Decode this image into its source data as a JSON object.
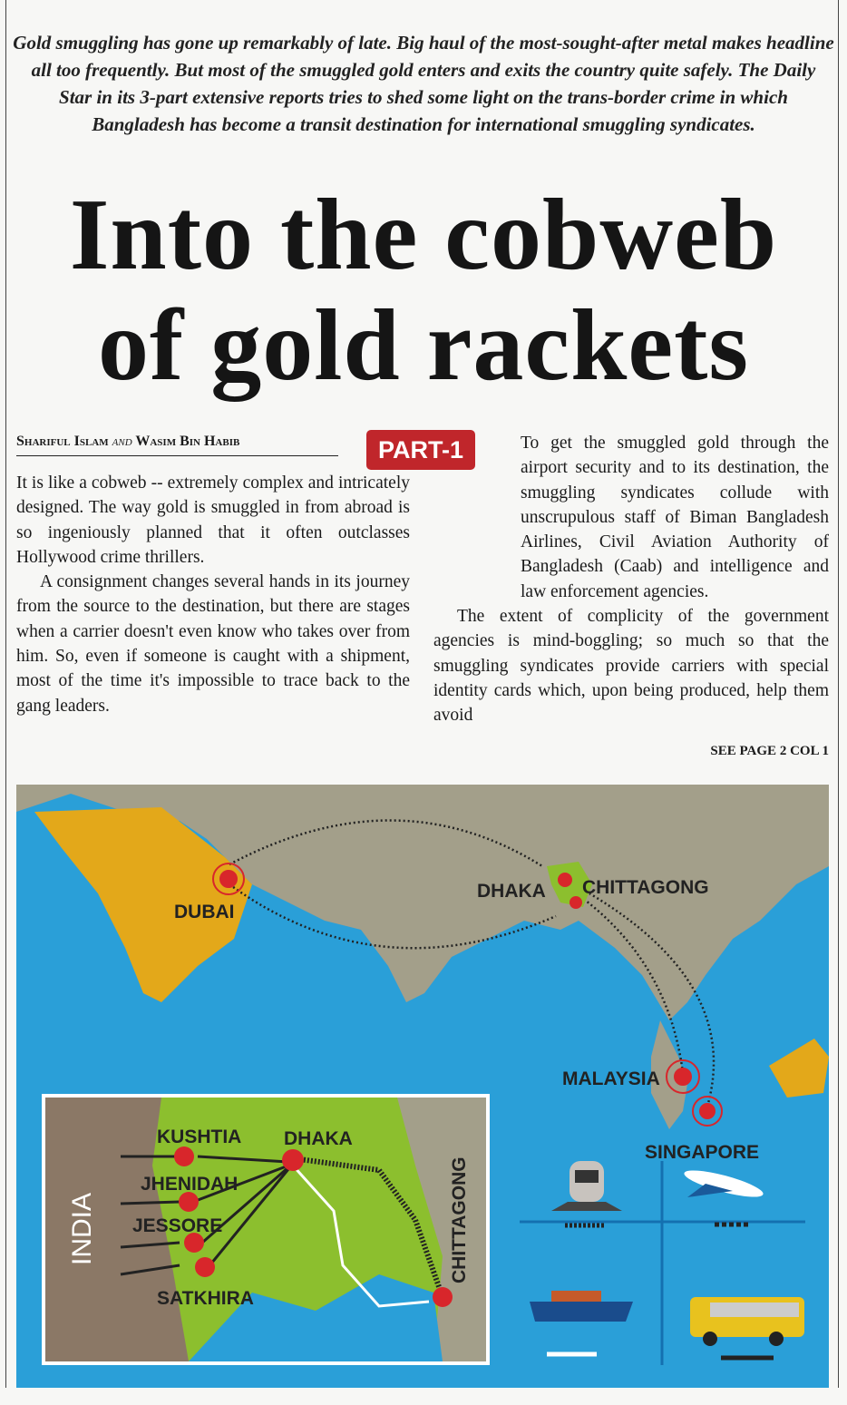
{
  "intro": "Gold smuggling has gone up remarkably of late. Big haul of the most-sought-after metal makes headline all too frequently. But most of the smuggled gold enters and exits the country quite safely. The Daily Star in its 3-part extensive reports tries to shed some light on the trans-border crime in which Bangladesh has become a transit destination for international smuggling syndicates.",
  "headline": {
    "line1": "Into the cobweb",
    "line2": "of gold rackets"
  },
  "byline": {
    "author1": "Shariful Islam",
    "and": "and",
    "author2": "Wasim Bin Habib"
  },
  "part_badge": "PART-1",
  "body": {
    "left": [
      "It is like a cobweb -- extremely complex and intricately designed. The way gold is smuggled in from abroad is so ingeniously planned that it often outclasses Hollywood crime thrillers.",
      "A consignment changes several hands in its journey from the source to the destination, but there are stages when a carrier doesn't even know who takes over from him. So, even if someone is caught with a shipment, most of the time it's impossible to trace back to the gang leaders."
    ],
    "right": [
      "To get the smuggled gold through the airport security and to its destination, the smuggling syndicates collude with unscrupulous staff of Biman Bangladesh Airlines, Civil Aviation Authority of Bangladesh (Caab) and intelligence and law enforcement agencies.",
      "The extent of complicity of the government agencies is mind-boggling; so much so that the smuggling syndicates provide carriers with special identity cards which, upon being produced, help them avoid"
    ],
    "continued": "SEE PAGE 2 COL 1"
  },
  "map": {
    "places": {
      "dubai": "DUBAI",
      "dhaka": "DHAKA",
      "chittagong": "CHITTAGONG",
      "malaysia": "MALAYSIA",
      "singapore": "SINGAPORE"
    },
    "inset": {
      "india": "INDIA",
      "kushtia": "KUSHTIA",
      "dhaka": "DHAKA",
      "jhenidah": "JHENIDAH",
      "jessore": "JESSORE",
      "satkhira": "SATKHIRA",
      "chittagong": "CHITTAGONG"
    },
    "legend": [
      {
        "icon": "train-icon",
        "line": "rail"
      },
      {
        "icon": "airplane-icon",
        "line": "dashed"
      },
      {
        "icon": "ship-icon",
        "line": "white"
      },
      {
        "icon": "bus-icon",
        "line": "black"
      }
    ],
    "colors": {
      "sea": "#2a9fd8",
      "land": "#a39f8a",
      "arabia": "#e3a81a",
      "bangladesh": "#8cbf2e",
      "marker": "#d8262b"
    }
  }
}
